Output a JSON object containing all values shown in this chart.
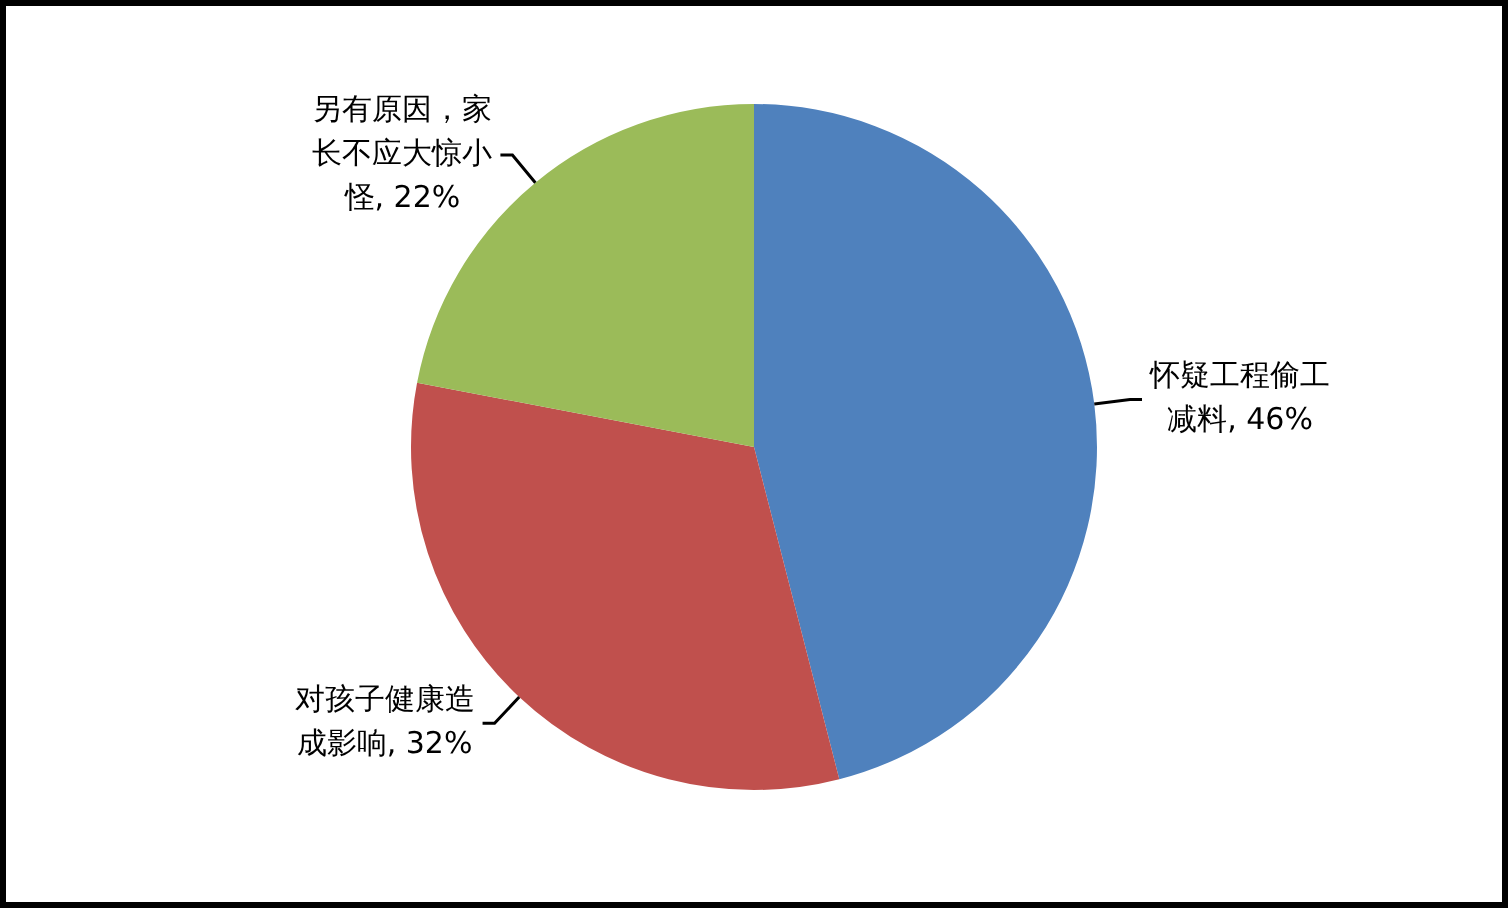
{
  "chart_data": {
    "type": "pie",
    "categories": [
      "怀疑工程偷工减料",
      "对孩子健康造成影响",
      "另有原因，家长不应大惊小怪"
    ],
    "values": [
      46,
      32,
      22
    ],
    "colors": [
      "#4f81bd",
      "#c0504d",
      "#9bbb59"
    ],
    "value_labels": [
      "46%",
      "32%",
      "22%"
    ],
    "legend": false
  }
}
